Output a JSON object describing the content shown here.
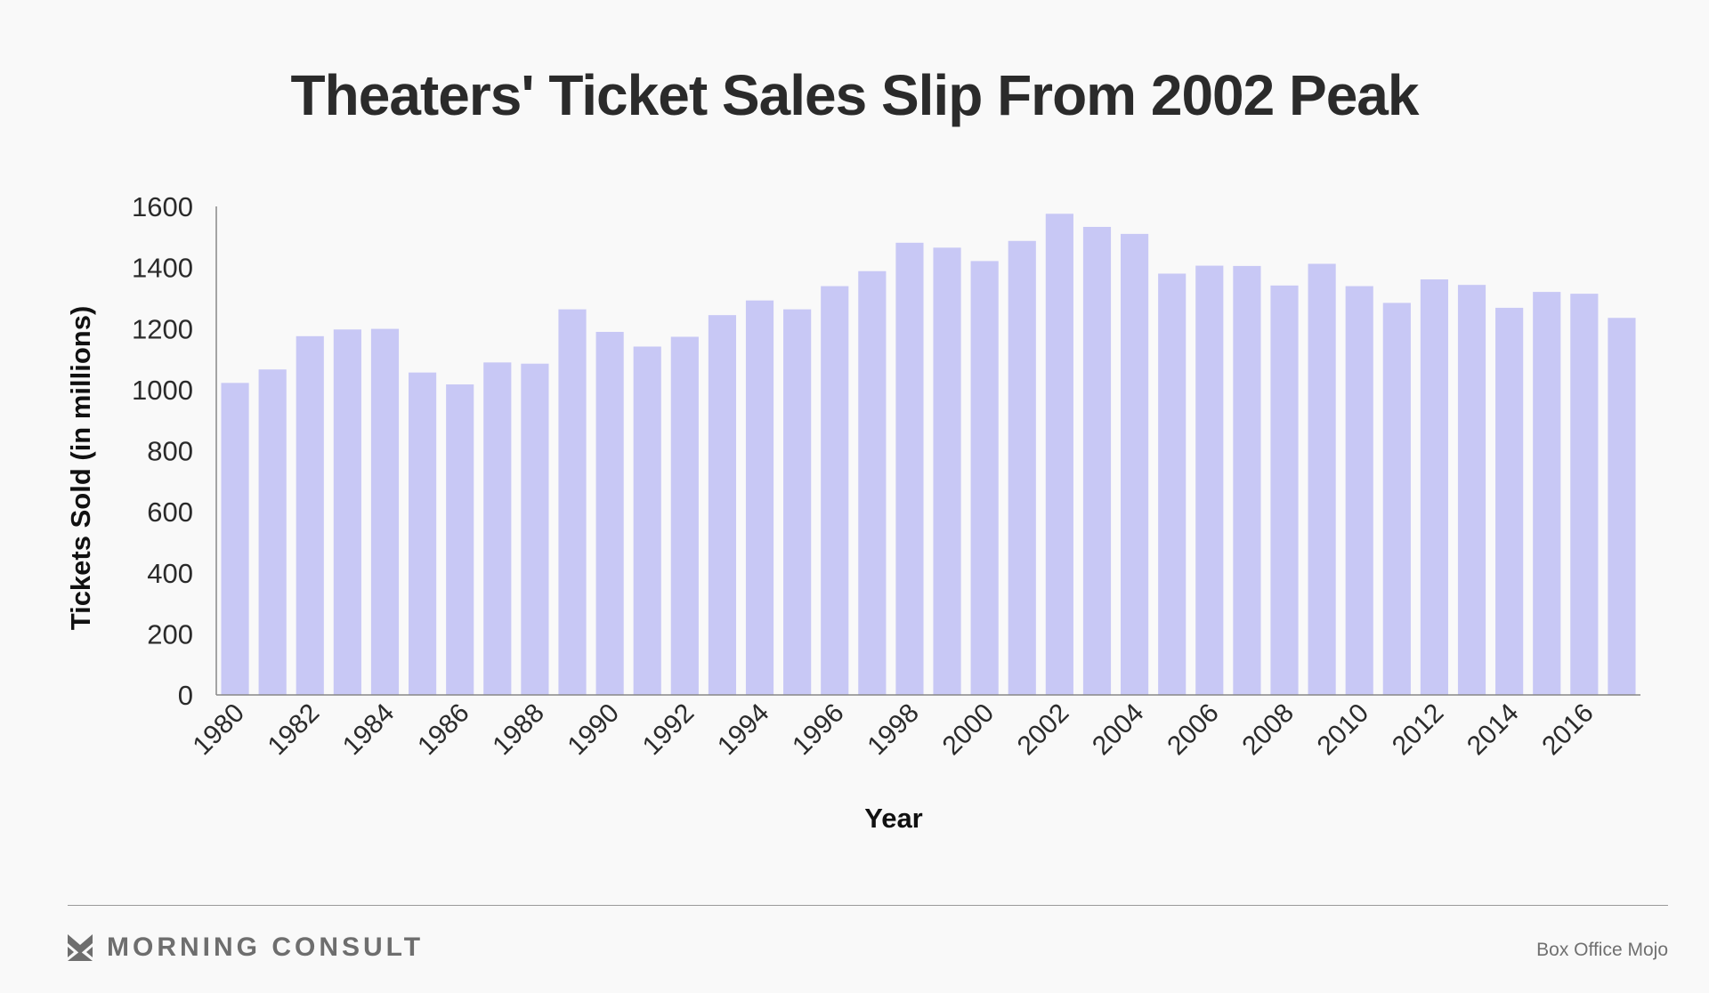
{
  "title": "Theaters' Ticket Sales Slip From 2002 Peak",
  "brand": "MORNING CONSULT",
  "source": "Box Office Mojo",
  "colors": {
    "bar": "#c8c8f5",
    "text": "#2b2b2b",
    "axis": "#888888"
  },
  "chart_data": {
    "type": "bar",
    "title": "Theaters' Ticket Sales Slip From 2002 Peak",
    "xlabel": "Year",
    "ylabel": "Tickets Sold (in millions)",
    "ylim": [
      0,
      1600
    ],
    "yticks": [
      0,
      200,
      400,
      600,
      800,
      1000,
      1200,
      1400,
      1600
    ],
    "grid": false,
    "categories": [
      "1980",
      "1981",
      "1982",
      "1983",
      "1984",
      "1985",
      "1986",
      "1987",
      "1988",
      "1989",
      "1990",
      "1991",
      "1992",
      "1993",
      "1994",
      "1995",
      "1996",
      "1997",
      "1998",
      "1999",
      "2000",
      "2001",
      "2002",
      "2003",
      "2004",
      "2005",
      "2006",
      "2007",
      "2008",
      "2009",
      "2010",
      "2011",
      "2012",
      "2013",
      "2014",
      "2015",
      "2016",
      "2017"
    ],
    "xtick_labels": [
      "1980",
      "",
      "1982",
      "",
      "1984",
      "",
      "1986",
      "",
      "1988",
      "",
      "1990",
      "",
      "1992",
      "",
      "1994",
      "",
      "1996",
      "",
      "1998",
      "",
      "2000",
      "",
      "2002",
      "",
      "2004",
      "",
      "2006",
      "",
      "2008",
      "",
      "2010",
      "",
      "2012",
      "",
      "2014",
      "",
      "2016",
      ""
    ],
    "values": [
      1022,
      1066,
      1175,
      1197,
      1199,
      1056,
      1017,
      1089,
      1085,
      1263,
      1189,
      1141,
      1173,
      1244,
      1292,
      1263,
      1339,
      1388,
      1481,
      1465,
      1421,
      1487,
      1576,
      1533,
      1510,
      1380,
      1406,
      1405,
      1341,
      1412,
      1339,
      1284,
      1361,
      1343,
      1268,
      1320,
      1314,
      1235
    ]
  }
}
